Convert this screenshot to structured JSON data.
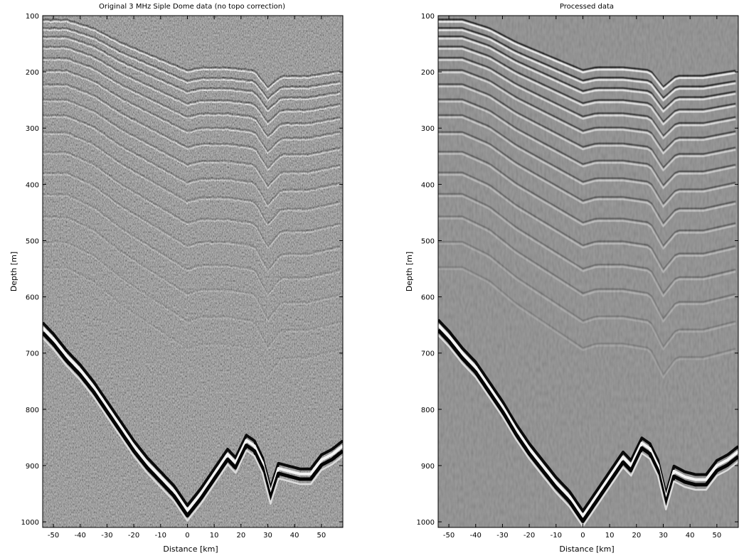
{
  "chart_data": [
    {
      "type": "heatmap",
      "title": "Original 3 MHz Siple Dome data (no topo correction)",
      "xlabel": "Distance [km]",
      "ylabel": "Depth [m]",
      "xlim": [
        -54,
        58
      ],
      "ylim": [
        1010,
        100
      ],
      "xticks": [
        -50,
        -40,
        -30,
        -20,
        -10,
        0,
        10,
        20,
        30,
        40,
        50
      ],
      "yticks": [
        100,
        200,
        300,
        400,
        500,
        600,
        700,
        800,
        900,
        1000
      ],
      "colormap": "gray",
      "processed": false,
      "bed_reflector": {
        "x": [
          -54,
          -50,
          -45,
          -40,
          -35,
          -30,
          -25,
          -20,
          -15,
          -10,
          -5,
          0,
          5,
          10,
          15,
          18,
          22,
          25,
          28,
          31,
          34,
          38,
          42,
          46,
          50,
          54,
          58
        ],
        "depth": [
          660,
          680,
          710,
          735,
          765,
          800,
          835,
          870,
          900,
          925,
          950,
          985,
          955,
          920,
          885,
          900,
          860,
          870,
          900,
          955,
          910,
          915,
          920,
          920,
          895,
          885,
          870
        ]
      },
      "internal_layers": {
        "surface_depths": [
          110,
          125,
          140,
          158,
          178,
          200,
          225,
          252,
          280,
          310,
          345,
          382,
          420,
          460,
          505,
          550
        ],
        "x": [
          -54,
          -45,
          -35,
          -25,
          -15,
          -5,
          0,
          5,
          15,
          25,
          30,
          35,
          45,
          58
        ],
        "offset": [
          0,
          0,
          15,
          40,
          60,
          80,
          90,
          85,
          85,
          90,
          120,
          100,
          100,
          90
        ]
      }
    },
    {
      "type": "heatmap",
      "title": "Processed data",
      "xlabel": "Distance [km]",
      "ylabel": "Depth [m]",
      "xlim": [
        -54,
        58
      ],
      "ylim": [
        1010,
        100
      ],
      "xticks": [
        -50,
        -40,
        -30,
        -20,
        -10,
        0,
        10,
        20,
        30,
        40,
        50
      ],
      "yticks": [
        100,
        200,
        300,
        400,
        500,
        600,
        700,
        800,
        900,
        1000
      ],
      "colormap": "gray",
      "processed": true,
      "bed_reflector": {
        "x": [
          -54,
          -50,
          -45,
          -40,
          -35,
          -30,
          -25,
          -20,
          -15,
          -10,
          -5,
          0,
          5,
          10,
          15,
          18,
          22,
          25,
          28,
          31,
          34,
          38,
          42,
          46,
          50,
          54,
          58
        ],
        "depth": [
          655,
          675,
          705,
          730,
          765,
          800,
          840,
          875,
          905,
          935,
          960,
          995,
          960,
          925,
          890,
          905,
          865,
          875,
          905,
          965,
          915,
          925,
          930,
          930,
          905,
          895,
          880
        ]
      },
      "internal_layers": {
        "surface_depths": [
          110,
          125,
          140,
          158,
          178,
          200,
          225,
          252,
          280,
          310,
          345,
          382,
          420,
          460,
          505,
          550
        ],
        "x": [
          -54,
          -45,
          -35,
          -25,
          -15,
          -5,
          0,
          5,
          15,
          25,
          30,
          35,
          45,
          58
        ],
        "offset": [
          0,
          0,
          15,
          40,
          60,
          80,
          90,
          85,
          85,
          90,
          120,
          100,
          100,
          90
        ]
      }
    }
  ]
}
